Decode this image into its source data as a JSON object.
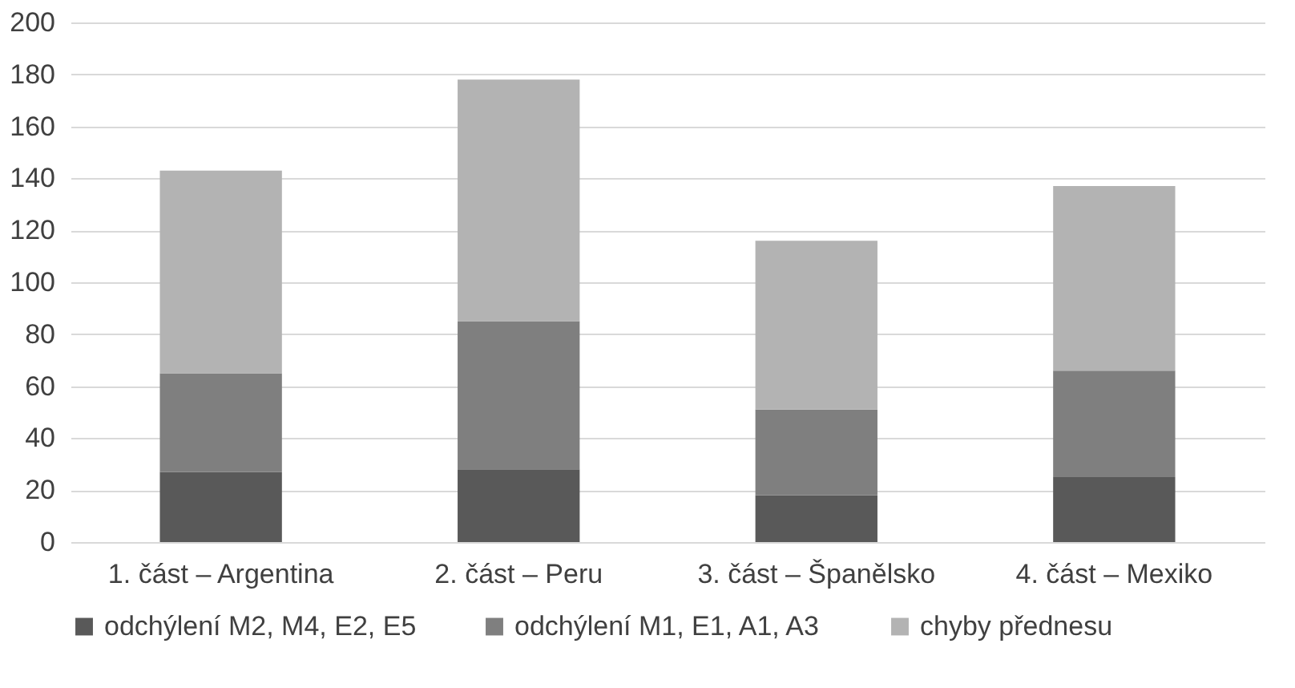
{
  "chart_data": {
    "type": "bar",
    "stacked": true,
    "categories": [
      "1. část – Argentina",
      "2. část – Peru",
      "3. část – Španělsko",
      "4. část – Mexiko"
    ],
    "series": [
      {
        "name": "odchýlení M2, M4, E2, E5",
        "color": "#595959",
        "values": [
          27,
          28,
          18,
          25
        ]
      },
      {
        "name": "odchýlení M1, E1, A1, A3",
        "color": "#7f7f7f",
        "values": [
          38,
          57,
          33,
          41
        ]
      },
      {
        "name": "chyby přednesu",
        "color": "#b3b3b3",
        "values": [
          78,
          93,
          65,
          71
        ]
      }
    ],
    "ylim": [
      0,
      200
    ],
    "yticks": [
      0,
      20,
      40,
      60,
      80,
      100,
      120,
      140,
      160,
      180,
      200
    ],
    "grid": "y",
    "legend": "bottom"
  }
}
